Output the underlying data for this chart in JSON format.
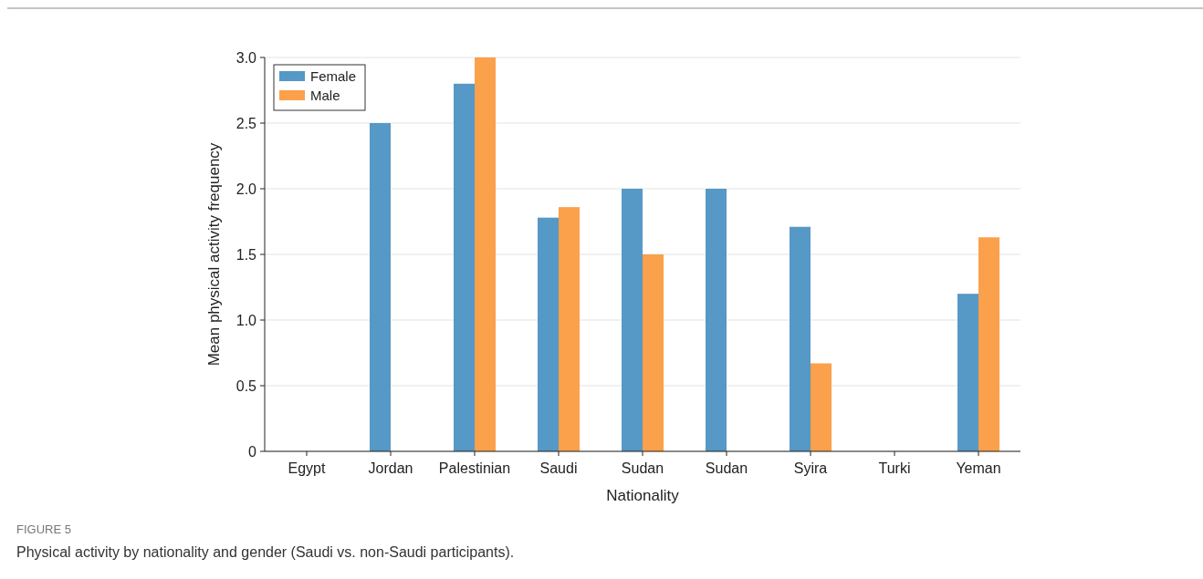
{
  "chart_data": {
    "type": "bar",
    "xlabel": "Nationality",
    "ylabel": "Mean physical activity frequency",
    "categories": [
      "Egypt",
      "Jordan",
      "Palestinian",
      "Saudi",
      "Sudan",
      "Sudan",
      "Syira",
      "Turki",
      "Yeman"
    ],
    "series": [
      {
        "name": "Female",
        "color": "#5698c6",
        "values": [
          null,
          2.5,
          2.8,
          1.78,
          2.0,
          2.0,
          1.71,
          null,
          1.2
        ]
      },
      {
        "name": "Male",
        "color": "#fba04b",
        "values": [
          null,
          null,
          3.0,
          1.86,
          1.5,
          null,
          0.67,
          null,
          1.63
        ]
      }
    ],
    "ylim": [
      0,
      3.0
    ],
    "yticks": [
      0,
      {
        "value": 0.5,
        "label": "0.5"
      },
      {
        "value": 1,
        "label": "1.0"
      },
      {
        "value": 1.5,
        "label": "1.5"
      },
      {
        "value": 2,
        "label": "2.0"
      },
      {
        "value": 2.5,
        "label": "2.5"
      },
      {
        "value": 3,
        "label": "3.0"
      }
    ],
    "grid": "y",
    "legend": "top left",
    "annotations": [
      "FIGURE 5",
      "Physical activity by nationality and gender (Saudi vs. non-Saudi participants)."
    ]
  }
}
